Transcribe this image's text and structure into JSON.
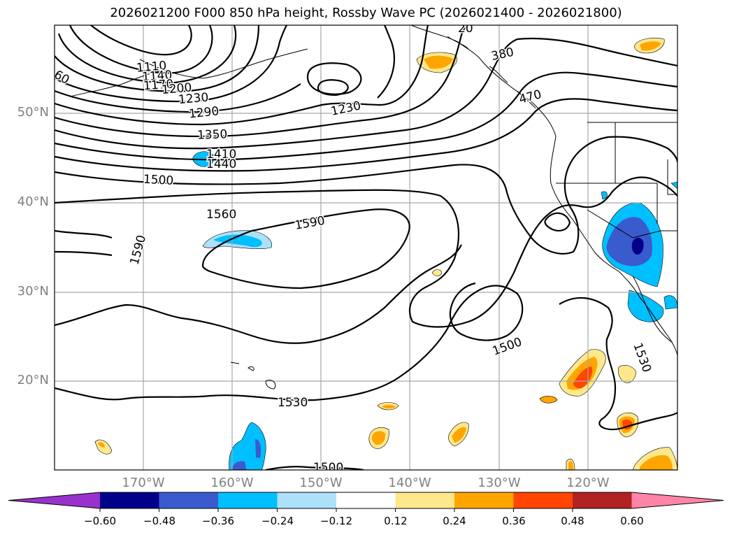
{
  "title": "2026021200 F000 850 hPa height, Rossby Wave PC (2026021400 - 2026021800)",
  "lat_labels": [
    "50°N",
    "40°N",
    "30°N",
    "20°N"
  ],
  "lon_labels": [
    "170°W",
    "160°W",
    "150°W",
    "140°W",
    "130°W",
    "120°W"
  ],
  "contour_labels": [
    "1110",
    "1140",
    "1170",
    "60",
    "1200",
    "1230",
    "1290",
    "1350",
    "1410",
    "1440",
    "1500",
    "1560",
    "1590",
    "1590",
    "1230",
    "380",
    "470",
    "1500",
    "1530",
    "1530",
    "1500",
    "20"
  ],
  "colorbar": {
    "ticks": [
      "−0.60",
      "−0.48",
      "−0.36",
      "−0.24",
      "−0.12",
      "0.12",
      "0.24",
      "0.36",
      "0.48",
      "0.60"
    ],
    "colors": [
      "#9932CC",
      "#00008B",
      "#3A5BCD",
      "#00BFFF",
      "#ADE1FA",
      "#FFFFFF",
      "#FFE88C",
      "#FFA500",
      "#FF4500",
      "#B22222",
      "#FF85A8"
    ]
  }
}
